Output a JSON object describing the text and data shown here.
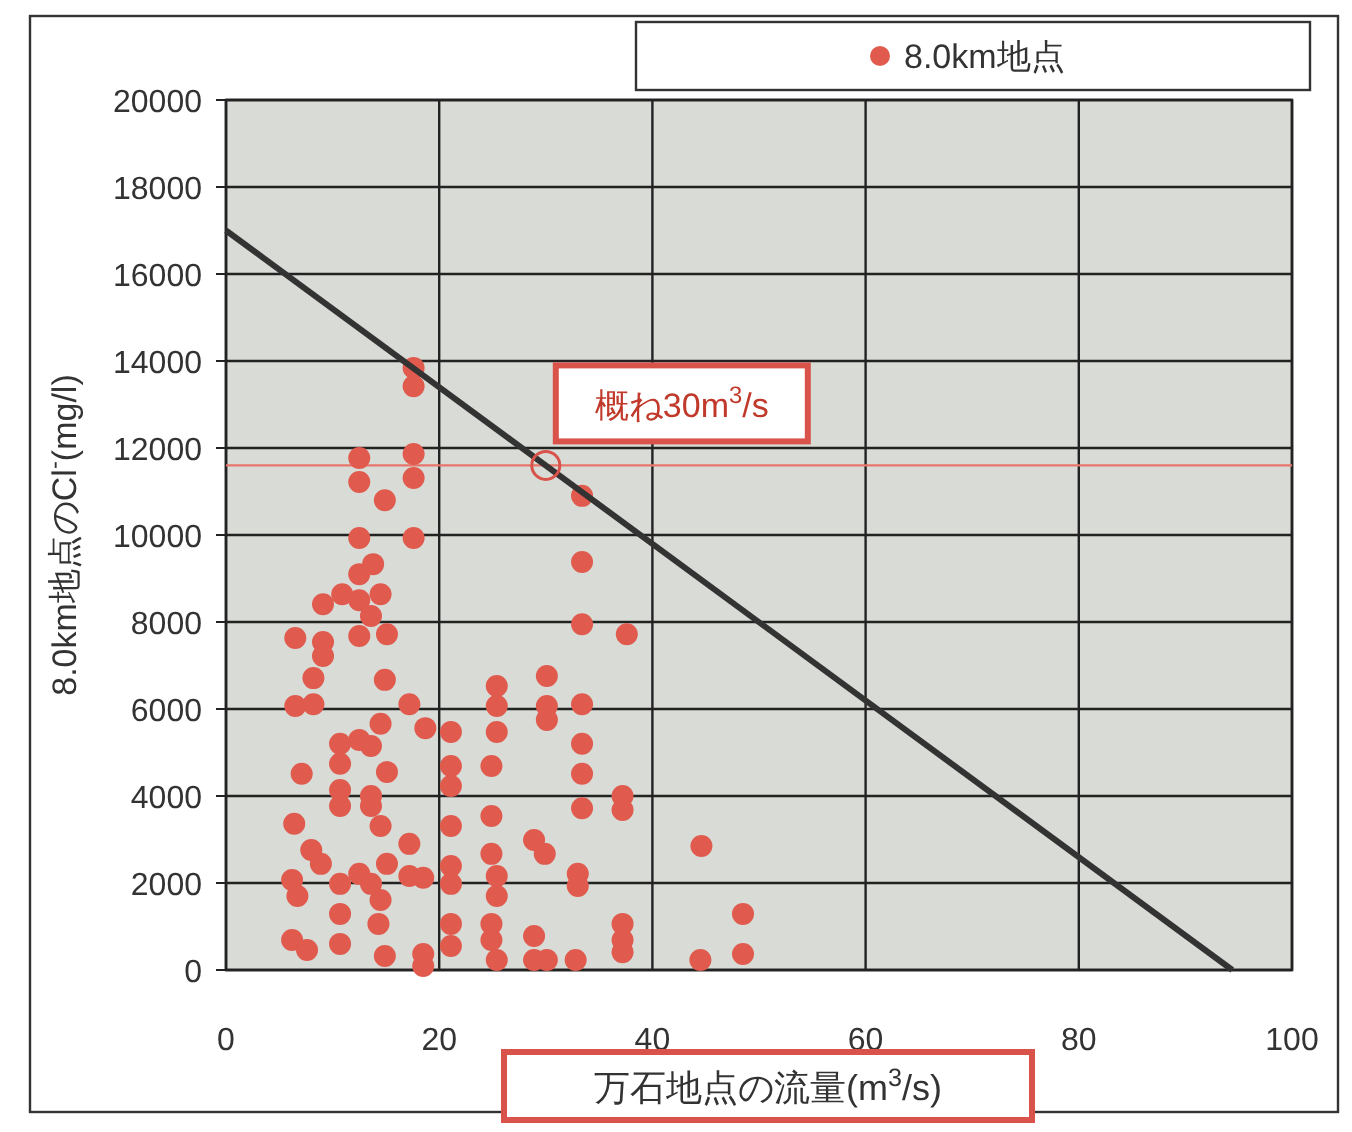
{
  "chart_data": {
    "type": "scatter",
    "xlabel": "万石地点の流量(m$^{3}$/s)",
    "ylabel": "8.0km地点のCl$^{-}$(mg/l)",
    "xlim": [
      0,
      100
    ],
    "ylim": [
      0,
      20000
    ],
    "xticks": [
      0,
      20,
      40,
      60,
      80,
      100
    ],
    "yticks": [
      0,
      2000,
      4000,
      6000,
      8000,
      10000,
      12000,
      14000,
      16000,
      18000,
      20000
    ],
    "grid": true,
    "legend": "top",
    "series": [
      {
        "name": "8.0km地点",
        "color": "#e05a4e",
        "marker": "circle",
        "x": [
          17.6,
          17.6,
          12.5,
          17.6,
          12.5,
          17.6,
          14.9,
          12.5,
          17.6,
          13.8,
          12.5,
          9.1,
          10.9,
          12.5,
          14.5,
          13.6,
          6.5,
          9.1,
          9.1,
          12.5,
          15.1,
          8.2,
          14.9,
          6.5,
          8.2,
          17.2,
          18.7,
          10.7,
          12.5,
          13.6,
          10.7,
          14.5,
          7.1,
          15.1,
          10.7,
          10.7,
          13.6,
          13.6,
          14.5,
          6.4,
          17.2,
          8.0,
          8.9,
          15.1,
          6.2,
          10.7,
          12.5,
          13.6,
          17.2,
          18.5,
          6.7,
          14.5,
          10.7,
          14.3,
          6.2,
          7.6,
          10.7,
          14.9,
          18.5,
          18.5,
          33.4,
          33.4,
          33.4,
          37.6,
          30.1,
          25.4,
          25.4,
          30.1,
          30.1,
          33.4,
          21.1,
          25.4,
          33.4,
          21.1,
          21.1,
          24.9,
          33.4,
          37.2,
          37.2,
          33.4,
          21.1,
          24.9,
          28.9,
          29.9,
          44.6,
          21.1,
          24.9,
          25.4,
          21.1,
          33.0,
          33.0,
          25.4,
          21.1,
          24.9,
          37.2,
          48.5,
          24.9,
          28.9,
          37.2,
          21.1,
          25.4,
          28.9,
          30.1,
          32.8,
          37.2,
          44.5,
          48.5
        ],
        "values": [
          13840,
          13420,
          11770,
          11860,
          11220,
          11310,
          10800,
          9930,
          9930,
          9330,
          9100,
          8410,
          8640,
          8500,
          8640,
          8140,
          7630,
          7540,
          7220,
          7680,
          7720,
          6710,
          6670,
          6070,
          6110,
          6110,
          5560,
          5200,
          5290,
          5150,
          4740,
          5660,
          4510,
          4550,
          4140,
          3770,
          4000,
          3770,
          3310,
          3360,
          2900,
          2760,
          2440,
          2440,
          2070,
          1980,
          2210,
          1980,
          2160,
          2120,
          1700,
          1610,
          1290,
          1060,
          690,
          460,
          600,
          320,
          370,
          90,
          10900,
          9380,
          7950,
          7720,
          6760,
          6530,
          6070,
          6070,
          5750,
          6110,
          5470,
          5470,
          5200,
          4690,
          4230,
          4690,
          4510,
          4000,
          3680,
          3720,
          3310,
          3540,
          2990,
          2670,
          2850,
          2390,
          2670,
          2160,
          1980,
          2210,
          1930,
          1700,
          1060,
          1060,
          1060,
          1290,
          690,
          780,
          690,
          550,
          230,
          230,
          230,
          230,
          410,
          230,
          370
        ]
      },
      {
        "type": "line",
        "color": "#333333",
        "marker": "none",
        "x": [
          0,
          94.4
        ],
        "values": [
          17000,
          0
        ]
      }
    ],
    "ref_lines": [
      {
        "axis": "y",
        "value": 11600,
        "color": "#e8766a"
      }
    ],
    "annotations": [
      {
        "text": "概ね30m$^{3}$/s",
        "x": 30,
        "y": 11600
      }
    ]
  }
}
